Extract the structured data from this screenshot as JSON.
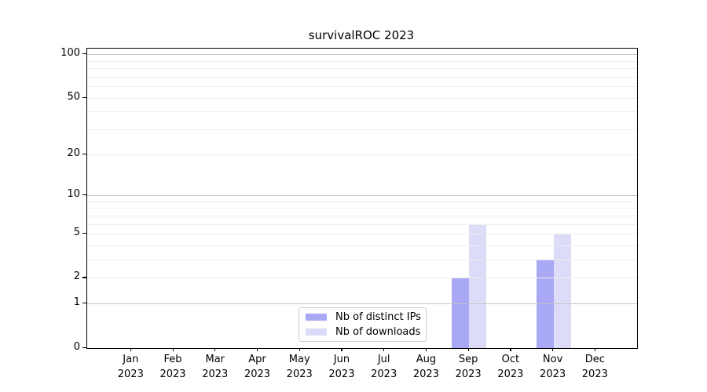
{
  "chart_data": {
    "type": "bar",
    "title": "survivalROC 2023",
    "months": [
      "Jan",
      "Feb",
      "Mar",
      "Apr",
      "May",
      "Jun",
      "Jul",
      "Aug",
      "Sep",
      "Oct",
      "Nov",
      "Dec"
    ],
    "year": "2023",
    "series": [
      {
        "name": "Nb of distinct IPs",
        "color": "#a8a8f4",
        "values": [
          0,
          0,
          0,
          0,
          0,
          0,
          0,
          0,
          2,
          0,
          3,
          0
        ]
      },
      {
        "name": "Nb of downloads",
        "color": "#dcdcf8",
        "values": [
          0,
          0,
          0,
          0,
          0,
          0,
          0,
          0,
          6,
          0,
          5,
          0
        ]
      }
    ],
    "y_axis": {
      "scale": "log1p",
      "ticks": [
        100,
        50,
        20,
        10,
        5,
        2,
        1,
        0
      ],
      "major_gridlines": [
        1,
        10,
        100
      ],
      "minor_gridlines": [
        2,
        3,
        4,
        5,
        6,
        7,
        8,
        9,
        20,
        30,
        40,
        50,
        60,
        70,
        80,
        90
      ],
      "ylim": [
        0,
        110
      ]
    },
    "xlabel": "",
    "ylabel": "",
    "grid": "horizontal only, drawn above bars",
    "legend_position": "lower center, inside plot",
    "colors": {
      "grid_major": "#c4c4c4",
      "grid_minor": "#ededed",
      "spine": "#000000",
      "background": "#ffffff",
      "text": "#000000"
    }
  }
}
